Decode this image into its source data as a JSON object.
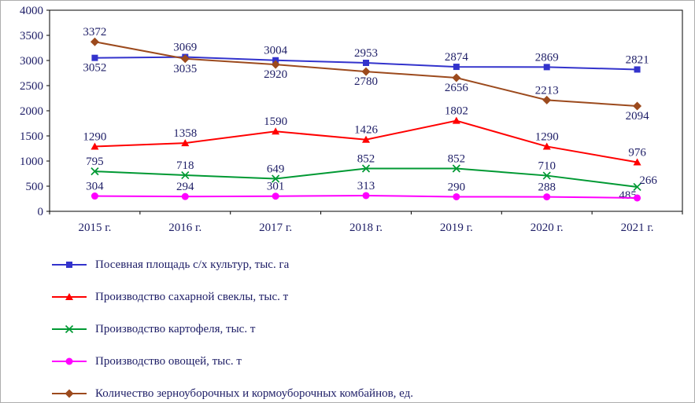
{
  "chart_data": {
    "type": "line",
    "title": "",
    "xlabel": "",
    "ylabel": "",
    "categories": [
      "2015 г.",
      "2016 г.",
      "2017 г.",
      "2018 г.",
      "2019 г.",
      "2020 г.",
      "2021 г."
    ],
    "series": [
      {
        "name": "Посевная площадь с/х культур, тыс. га",
        "color": "#3333CC",
        "marker": "square",
        "values": [
          3052,
          3069,
          3004,
          2953,
          2874,
          2869,
          2821
        ],
        "label_positions": [
          "below",
          "above",
          "above",
          "above",
          "above",
          "above",
          "above"
        ]
      },
      {
        "name": "Производство сахарной свеклы, тыс. т",
        "color": "#FF0000",
        "marker": "triangle",
        "values": [
          1290,
          1358,
          1590,
          1426,
          1802,
          1290,
          976
        ],
        "label_positions": [
          "above",
          "above",
          "above",
          "above",
          "above",
          "above",
          "above"
        ]
      },
      {
        "name": "Производство картофеля, тыс. т",
        "color": "#009933",
        "marker": "x",
        "values": [
          795,
          718,
          649,
          852,
          852,
          710,
          485
        ],
        "label_positions": [
          "above",
          "above",
          "above",
          "above",
          "above",
          "above",
          "below-left"
        ]
      },
      {
        "name": "Производство овощей, тыс. т",
        "color": "#FF00FF",
        "marker": "circle",
        "values": [
          304,
          294,
          301,
          313,
          290,
          288,
          266
        ],
        "label_positions": [
          "above",
          "above",
          "above",
          "above",
          "above",
          "above",
          "above-right"
        ]
      },
      {
        "name": "Количество зерноуборочных и кормоуборочных комбайнов, ед.",
        "color": "#9C4A1D",
        "marker": "diamond",
        "values": [
          3372,
          3035,
          2920,
          2780,
          2656,
          2213,
          2094
        ],
        "label_positions": [
          "above",
          "below",
          "below",
          "below",
          "below",
          "above",
          "below"
        ]
      }
    ],
    "ylim": [
      0,
      4000
    ],
    "ytick_step": 500,
    "yticks": [
      "0",
      "500",
      "1000",
      "1500",
      "2000",
      "2500",
      "3000",
      "3500",
      "4000"
    ],
    "grid": false,
    "legend_position": "bottom-left",
    "text_color": "#1D1D66"
  }
}
